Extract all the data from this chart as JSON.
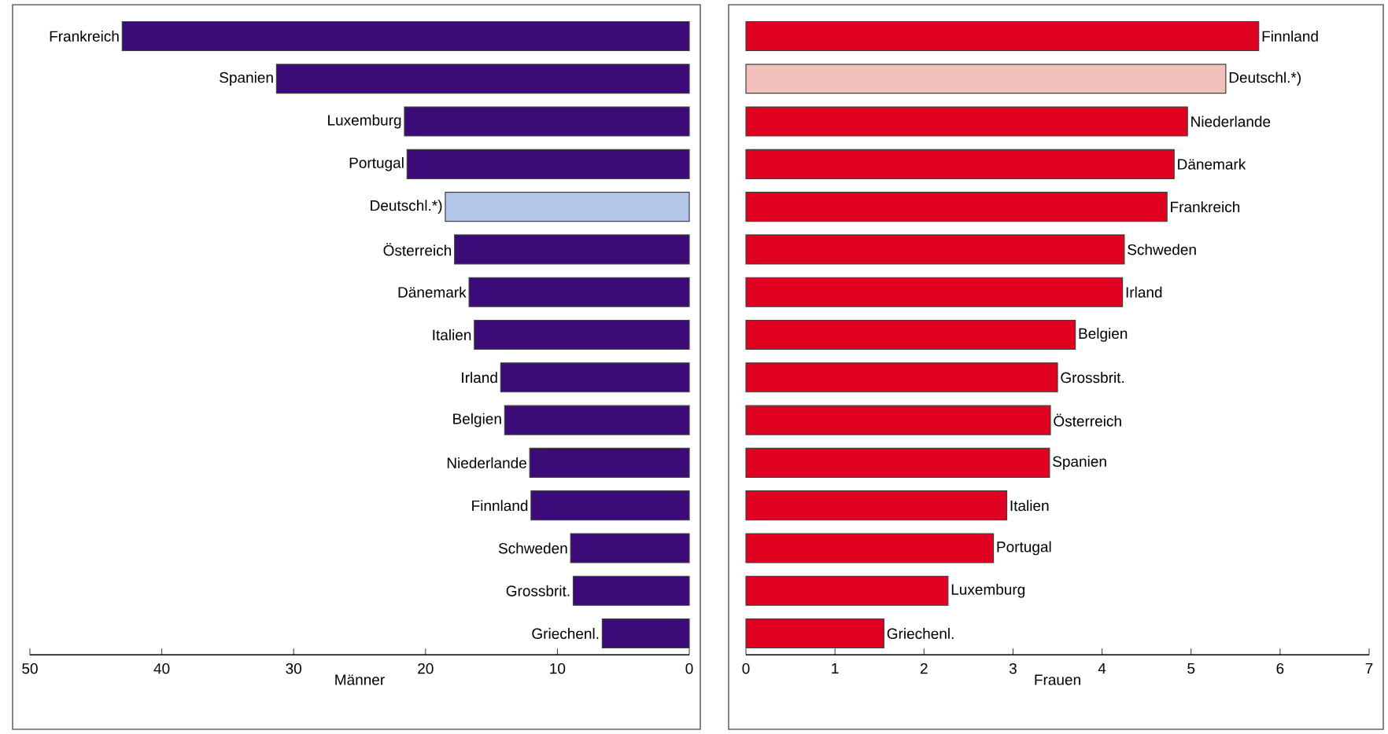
{
  "chart_data": [
    {
      "type": "bar",
      "orientation": "horizontal",
      "xlabel": "Männer",
      "categories": [
        "Frankreich",
        "Spanien",
        "Luxemburg",
        "Portugal",
        "Deutschl.*)",
        "Österreich",
        "Dänemark",
        "Italien",
        "Irland",
        "Belgien",
        "Niederlande",
        "Finnland",
        "Schweden",
        "Grossbrit.",
        "Griechenl."
      ],
      "values": [
        43.0,
        31.3,
        21.6,
        21.4,
        18.5,
        17.8,
        16.7,
        16.3,
        14.3,
        14.0,
        12.1,
        12.0,
        9.0,
        8.8,
        6.6
      ],
      "colors": [
        "#3b0b78",
        "#3b0b78",
        "#3b0b78",
        "#3b0b78",
        "#b4c6e7",
        "#3b0b78",
        "#3b0b78",
        "#3b0b78",
        "#3b0b78",
        "#3b0b78",
        "#3b0b78",
        "#3b0b78",
        "#3b0b78",
        "#3b0b78",
        "#3b0b78"
      ],
      "xlim": [
        50,
        0
      ],
      "xticks": [
        50,
        40,
        30,
        20,
        10,
        0
      ]
    },
    {
      "type": "bar",
      "orientation": "horizontal",
      "xlabel": "Frauen",
      "categories": [
        "Finnland",
        "Deutschl.*)",
        "Niederlande",
        "Dänemark",
        "Frankreich",
        "Schweden",
        "Irland",
        "Belgien",
        "Grossbrit.",
        "Österreich",
        "Spanien",
        "Italien",
        "Portugal",
        "Luxemburg",
        "Griechenl."
      ],
      "values": [
        5.76,
        5.39,
        4.96,
        4.81,
        4.73,
        4.25,
        4.23,
        3.7,
        3.5,
        3.42,
        3.41,
        2.93,
        2.78,
        2.27,
        1.55
      ],
      "colors": [
        "#e00020",
        "#f4c0bb",
        "#e00020",
        "#e00020",
        "#e00020",
        "#e00020",
        "#e00020",
        "#e00020",
        "#e00020",
        "#e00020",
        "#e00020",
        "#e00020",
        "#e00020",
        "#e00020",
        "#e00020"
      ],
      "xlim": [
        0,
        7
      ],
      "xticks": [
        0,
        1,
        2,
        3,
        4,
        5,
        6,
        7
      ]
    }
  ]
}
